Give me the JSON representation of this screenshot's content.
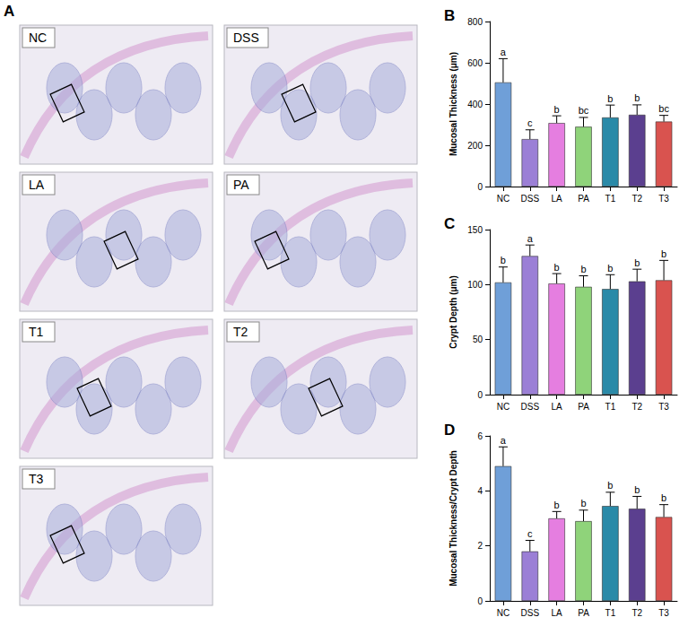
{
  "images": {
    "panel": "A",
    "labels": [
      "NC",
      "DSS",
      "LA",
      "PA",
      "T1",
      "T2",
      "T3"
    ]
  },
  "chart_data": [
    {
      "type": "bar",
      "panel": "B",
      "y_label": "Mucosal Thickness (μm)",
      "categories": [
        "NC",
        "DSS",
        "LA",
        "PA",
        "T1",
        "T2",
        "T3"
      ],
      "values": [
        505,
        230,
        308,
        290,
        335,
        348,
        315
      ],
      "errors": [
        115,
        45,
        35,
        45,
        60,
        48,
        30
      ],
      "letters": [
        "a",
        "c",
        "b",
        "bc",
        "b",
        "b",
        "bc"
      ],
      "colors": [
        "#6f9fd8",
        "#9b7fd6",
        "#e57ee0",
        "#8fd37a",
        "#2a8aa8",
        "#5b3f8f",
        "#d9534f"
      ],
      "ylim": [
        0,
        800
      ],
      "yticks": [
        0,
        200,
        400,
        600,
        800
      ],
      "grid": false
    },
    {
      "type": "bar",
      "panel": "C",
      "y_label": "Crypt Depth (μm)",
      "categories": [
        "NC",
        "DSS",
        "LA",
        "PA",
        "T1",
        "T2",
        "T3"
      ],
      "values": [
        102,
        126,
        101,
        98,
        96,
        103,
        104
      ],
      "errors": [
        14,
        10,
        9,
        10,
        13,
        11,
        18
      ],
      "letters": [
        "b",
        "a",
        "b",
        "b",
        "b",
        "b",
        "b"
      ],
      "colors": [
        "#6f9fd8",
        "#9b7fd6",
        "#e57ee0",
        "#8fd37a",
        "#2a8aa8",
        "#5b3f8f",
        "#d9534f"
      ],
      "ylim": [
        0,
        150
      ],
      "yticks": [
        0,
        50,
        100,
        150
      ],
      "grid": false
    },
    {
      "type": "bar",
      "panel": "D",
      "y_label": "Mucosal Thickness/Crypt Depth",
      "categories": [
        "NC",
        "DSS",
        "LA",
        "PA",
        "T1",
        "T2",
        "T3"
      ],
      "values": [
        4.9,
        1.8,
        3.0,
        2.9,
        3.45,
        3.35,
        3.05
      ],
      "errors": [
        0.7,
        0.4,
        0.25,
        0.4,
        0.5,
        0.45,
        0.45
      ],
      "letters": [
        "a",
        "c",
        "b",
        "b",
        "b",
        "b",
        "b"
      ],
      "colors": [
        "#6f9fd8",
        "#9b7fd6",
        "#e57ee0",
        "#8fd37a",
        "#2a8aa8",
        "#5b3f8f",
        "#d9534f"
      ],
      "ylim": [
        0,
        6
      ],
      "yticks": [
        0,
        2,
        4,
        6
      ],
      "grid": false
    }
  ]
}
